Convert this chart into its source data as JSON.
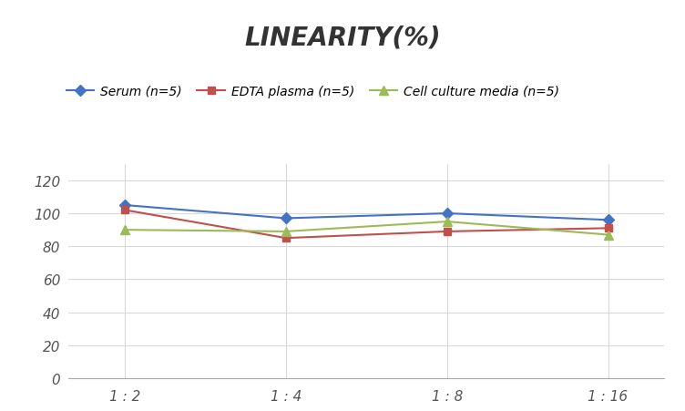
{
  "title": "LINEARITY(%)",
  "x_labels": [
    "1 : 2",
    "1 : 4",
    "1 : 8",
    "1 : 16"
  ],
  "x_positions": [
    0,
    1,
    2,
    3
  ],
  "series": [
    {
      "label": "Serum (n=5)",
      "values": [
        105,
        97,
        100,
        96
      ],
      "color": "#4472C4",
      "marker": "D",
      "marker_size": 6
    },
    {
      "label": "EDTA plasma (n=5)",
      "values": [
        102,
        85,
        89,
        91
      ],
      "color": "#C0504D",
      "marker": "s",
      "marker_size": 6
    },
    {
      "label": "Cell culture media (n=5)",
      "values": [
        90,
        89,
        95,
        87
      ],
      "color": "#9BBB59",
      "marker": "^",
      "marker_size": 7
    }
  ],
  "ylim": [
    0,
    130
  ],
  "yticks": [
    0,
    20,
    40,
    60,
    80,
    100,
    120
  ],
  "grid_color": "#D9D9D9",
  "background_color": "#FFFFFF",
  "title_fontsize": 20,
  "legend_fontsize": 10,
  "tick_fontsize": 11
}
